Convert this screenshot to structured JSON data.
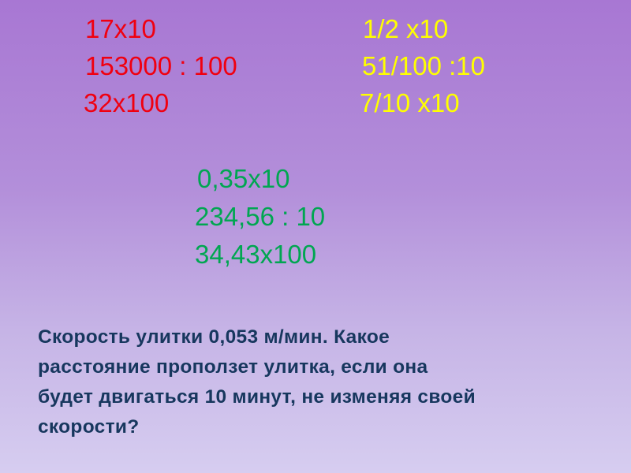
{
  "colors": {
    "red": "#f00010",
    "yellow": "#ffff00",
    "green": "#00a651",
    "task": "#17375e"
  },
  "left_column": [
    "17x10",
    "153000 : 100",
    "32x100"
  ],
  "right_column": [
    "1/2 x10",
    "51/100 :10",
    "7/10 x10"
  ],
  "center_column": [
    "0,35x10",
    "234,56 : 10",
    "34,43x100"
  ],
  "task_lines": [
    "Скорость улитки 0,053 м/мин. Какое",
    "расстояние проползет улитка, если она",
    "будет двигаться 10 минут, не изменяя своей",
    "скорости?"
  ]
}
